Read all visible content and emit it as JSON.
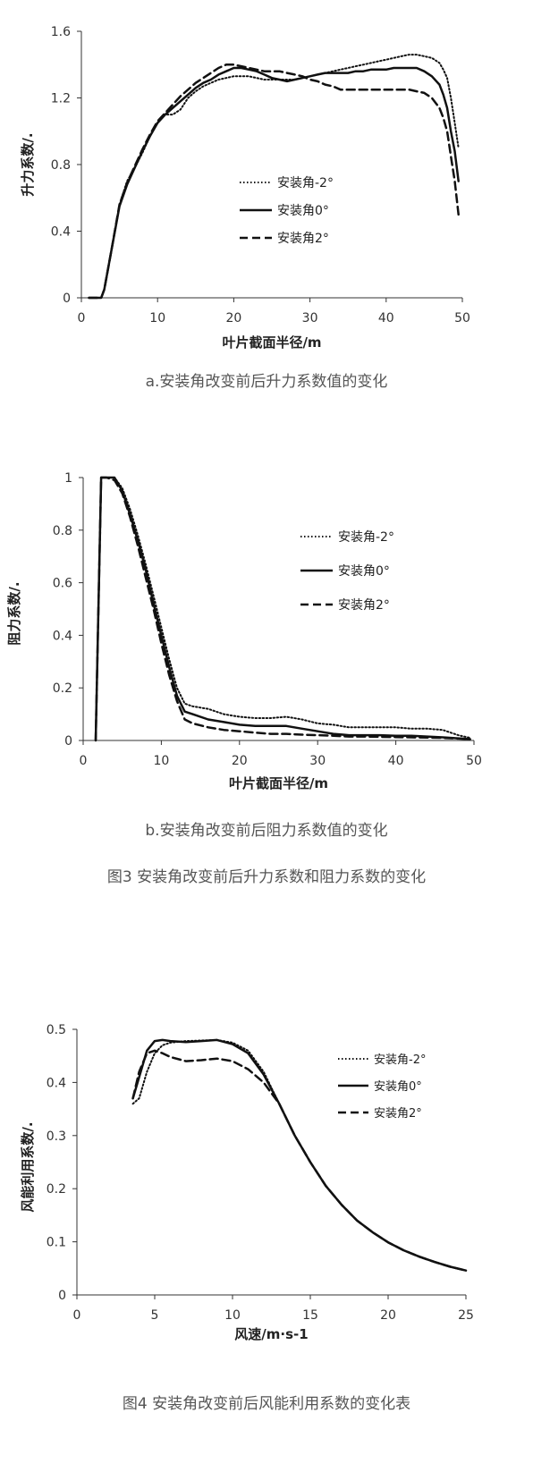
{
  "chart_data": [
    {
      "type": "line",
      "caption": "a.安装角改变前后升力系数值的变化",
      "xlabel": "叶片截面半径/m",
      "ylabel": "升力系数/.",
      "xlim": [
        0,
        50
      ],
      "ylim": [
        0,
        1.6
      ],
      "xticks": [
        "0",
        "10",
        "20",
        "30",
        "40",
        "50"
      ],
      "yticks": [
        "0",
        "0.4",
        "0.8",
        "1.2",
        "1.6"
      ],
      "xtick_values": [
        0,
        10,
        20,
        30,
        40,
        50
      ],
      "ytick_values": [
        0,
        0.4,
        0.8,
        1.2,
        1.6
      ],
      "grid": false,
      "legend_position": "center",
      "series": [
        {
          "name": "安装角-2°",
          "style": "dotted",
          "x": [
            1,
            2.6,
            3,
            4,
            5,
            6,
            7,
            8,
            9,
            10,
            11,
            12,
            13,
            14,
            15,
            16,
            17,
            18,
            19,
            20,
            21,
            22,
            23,
            24,
            25,
            26,
            27,
            28,
            29,
            30,
            31,
            32,
            33,
            34,
            35,
            36,
            37,
            38,
            39,
            40,
            41,
            42,
            43,
            44,
            45,
            46,
            47,
            47.5,
            48,
            48.5,
            49,
            49.5
          ],
          "y": [
            0,
            0,
            0.05,
            0.3,
            0.56,
            0.7,
            0.78,
            0.87,
            0.97,
            1.05,
            1.1,
            1.1,
            1.13,
            1.2,
            1.24,
            1.27,
            1.29,
            1.31,
            1.32,
            1.33,
            1.33,
            1.33,
            1.32,
            1.31,
            1.31,
            1.31,
            1.31,
            1.31,
            1.32,
            1.33,
            1.34,
            1.35,
            1.36,
            1.37,
            1.38,
            1.39,
            1.4,
            1.41,
            1.42,
            1.43,
            1.44,
            1.45,
            1.46,
            1.46,
            1.45,
            1.44,
            1.41,
            1.37,
            1.32,
            1.2,
            1.05,
            0.9
          ]
        },
        {
          "name": "安装角0°",
          "style": "solid",
          "x": [
            1,
            2.6,
            3,
            4,
            5,
            6,
            7,
            8,
            9,
            10,
            11,
            12,
            13,
            14,
            15,
            16,
            17,
            18,
            19,
            20,
            21,
            22,
            23,
            24,
            25,
            26,
            27,
            28,
            29,
            30,
            31,
            32,
            33,
            34,
            35,
            36,
            37,
            38,
            39,
            40,
            41,
            42,
            43,
            44,
            45,
            46,
            47,
            47.5,
            48,
            48.5,
            49,
            49.5
          ],
          "y": [
            0,
            0,
            0.05,
            0.3,
            0.55,
            0.68,
            0.78,
            0.88,
            0.97,
            1.05,
            1.1,
            1.14,
            1.18,
            1.22,
            1.26,
            1.29,
            1.31,
            1.34,
            1.36,
            1.38,
            1.38,
            1.37,
            1.36,
            1.34,
            1.32,
            1.31,
            1.3,
            1.31,
            1.32,
            1.33,
            1.34,
            1.35,
            1.35,
            1.35,
            1.35,
            1.36,
            1.36,
            1.37,
            1.37,
            1.37,
            1.38,
            1.38,
            1.38,
            1.38,
            1.36,
            1.33,
            1.28,
            1.22,
            1.14,
            1.0,
            0.88,
            0.7
          ]
        },
        {
          "name": "安装角2°",
          "style": "dashed",
          "x": [
            1,
            2.6,
            3,
            4,
            5,
            6,
            7,
            8,
            9,
            10,
            11,
            12,
            13,
            14,
            15,
            16,
            17,
            18,
            19,
            20,
            21,
            22,
            23,
            24,
            25,
            26,
            27,
            28,
            29,
            30,
            31,
            32,
            33,
            34,
            35,
            36,
            37,
            38,
            39,
            40,
            41,
            42,
            43,
            44,
            45,
            46,
            47,
            47.5,
            48,
            48.5,
            49,
            49.5
          ],
          "y": [
            0,
            0,
            0.05,
            0.3,
            0.56,
            0.69,
            0.79,
            0.89,
            0.98,
            1.06,
            1.11,
            1.16,
            1.21,
            1.25,
            1.29,
            1.32,
            1.35,
            1.38,
            1.4,
            1.4,
            1.39,
            1.38,
            1.37,
            1.36,
            1.36,
            1.36,
            1.35,
            1.34,
            1.33,
            1.31,
            1.3,
            1.28,
            1.27,
            1.25,
            1.25,
            1.25,
            1.25,
            1.25,
            1.25,
            1.25,
            1.25,
            1.25,
            1.25,
            1.24,
            1.23,
            1.2,
            1.14,
            1.08,
            1.0,
            0.85,
            0.7,
            0.5
          ]
        }
      ]
    },
    {
      "type": "line",
      "caption": "b.安装角改变前后阻力系数值的变化",
      "xlabel": "叶片截面半径/m",
      "ylabel": "阻力系数/.",
      "xlim": [
        0,
        50
      ],
      "ylim": [
        0,
        1
      ],
      "xticks": [
        "0",
        "10",
        "20",
        "30",
        "40",
        "50"
      ],
      "yticks": [
        "0",
        "0.2",
        "0.4",
        "0.6",
        "0.8",
        "1"
      ],
      "xtick_values": [
        0,
        10,
        20,
        30,
        40,
        50
      ],
      "ytick_values": [
        0,
        0.2,
        0.4,
        0.6,
        0.8,
        1
      ],
      "grid": false,
      "legend_position": "top-right",
      "series": [
        {
          "name": "安装角-2°",
          "style": "dotted",
          "x": [
            1.6,
            2.3,
            3,
            4,
            5,
            6,
            7,
            8,
            9,
            10,
            11,
            12,
            13,
            14,
            16,
            18,
            20,
            22,
            24,
            26,
            28,
            30,
            32,
            34,
            36,
            38,
            40,
            42,
            44,
            46,
            48,
            49.5
          ],
          "y": [
            0,
            1,
            1,
            1,
            0.96,
            0.88,
            0.78,
            0.67,
            0.55,
            0.43,
            0.31,
            0.2,
            0.14,
            0.13,
            0.12,
            0.1,
            0.09,
            0.085,
            0.085,
            0.09,
            0.08,
            0.065,
            0.06,
            0.05,
            0.05,
            0.05,
            0.05,
            0.045,
            0.045,
            0.04,
            0.02,
            0.01
          ]
        },
        {
          "name": "安装角0°",
          "style": "solid",
          "x": [
            1.6,
            2.3,
            3,
            4,
            5,
            6,
            7,
            8,
            9,
            10,
            11,
            12,
            13,
            14,
            16,
            18,
            20,
            22,
            24,
            26,
            28,
            30,
            32,
            34,
            36,
            38,
            40,
            42,
            44,
            46,
            48,
            49.5
          ],
          "y": [
            0,
            1,
            1,
            1,
            0.95,
            0.86,
            0.76,
            0.65,
            0.52,
            0.4,
            0.28,
            0.17,
            0.11,
            0.1,
            0.08,
            0.07,
            0.06,
            0.055,
            0.055,
            0.055,
            0.045,
            0.035,
            0.025,
            0.02,
            0.02,
            0.02,
            0.018,
            0.018,
            0.015,
            0.012,
            0.008,
            0.005
          ]
        },
        {
          "name": "安装角2°",
          "style": "dashed",
          "x": [
            1.6,
            2.3,
            3,
            4,
            5,
            6,
            7,
            8,
            9,
            10,
            11,
            12,
            13,
            14,
            16,
            18,
            20,
            22,
            24,
            26,
            28,
            30,
            32,
            34,
            36,
            38,
            40,
            42,
            44,
            46,
            48,
            49.5
          ],
          "y": [
            0,
            1,
            1,
            0.99,
            0.94,
            0.85,
            0.74,
            0.62,
            0.5,
            0.37,
            0.25,
            0.15,
            0.08,
            0.065,
            0.05,
            0.04,
            0.035,
            0.03,
            0.025,
            0.025,
            0.022,
            0.02,
            0.018,
            0.015,
            0.015,
            0.014,
            0.013,
            0.012,
            0.011,
            0.01,
            0.007,
            0.005
          ]
        }
      ]
    },
    {
      "type": "line",
      "caption": "图4 安装角改变前后风能利用系数的变化表",
      "xlabel": "风速/m·s-1",
      "ylabel": "风能利用系数/.",
      "xlim": [
        0,
        25
      ],
      "ylim": [
        0,
        0.5
      ],
      "xticks": [
        "0",
        "5",
        "10",
        "15",
        "20",
        "25"
      ],
      "yticks": [
        "0",
        "0.1",
        "0.2",
        "0.3",
        "0.4",
        "0.5"
      ],
      "xtick_values": [
        0,
        5,
        10,
        15,
        20,
        25
      ],
      "ytick_values": [
        0,
        0.1,
        0.2,
        0.3,
        0.4,
        0.5
      ],
      "grid": false,
      "legend_position": "top-right",
      "series": [
        {
          "name": "安装角-2°",
          "style": "dotted",
          "x": [
            3.6,
            4,
            4.5,
            5,
            5.5,
            6,
            7,
            8,
            9,
            10,
            11,
            12,
            13,
            14,
            15,
            16,
            17,
            18,
            19,
            20,
            21,
            22,
            23,
            24,
            25
          ],
          "y": [
            0.36,
            0.37,
            0.42,
            0.455,
            0.47,
            0.475,
            0.478,
            0.479,
            0.48,
            0.475,
            0.46,
            0.42,
            0.36,
            0.3,
            0.25,
            0.205,
            0.17,
            0.14,
            0.118,
            0.099,
            0.084,
            0.072,
            0.062,
            0.053,
            0.046
          ]
        },
        {
          "name": "安装角0°",
          "style": "solid",
          "x": [
            3.6,
            4,
            4.5,
            5,
            5.5,
            6,
            7,
            8,
            9,
            10,
            11,
            12,
            13,
            14,
            15,
            16,
            17,
            18,
            19,
            20,
            21,
            22,
            23,
            24,
            25
          ],
          "y": [
            0.37,
            0.41,
            0.46,
            0.478,
            0.48,
            0.478,
            0.476,
            0.478,
            0.48,
            0.472,
            0.455,
            0.415,
            0.36,
            0.3,
            0.25,
            0.205,
            0.17,
            0.14,
            0.118,
            0.099,
            0.084,
            0.072,
            0.062,
            0.053,
            0.046
          ]
        },
        {
          "name": "安装角2°",
          "style": "dashed",
          "x": [
            3.6,
            4,
            4.5,
            5,
            5.5,
            6,
            7,
            8,
            9,
            10,
            11,
            12,
            13,
            14,
            15,
            16,
            17,
            18,
            19,
            20,
            21,
            22,
            23,
            24,
            25
          ],
          "y": [
            0.37,
            0.42,
            0.455,
            0.46,
            0.455,
            0.448,
            0.44,
            0.442,
            0.445,
            0.44,
            0.425,
            0.4,
            0.36,
            0.3,
            0.25,
            0.205,
            0.17,
            0.14,
            0.118,
            0.099,
            0.084,
            0.072,
            0.062,
            0.053,
            0.046
          ]
        }
      ]
    }
  ],
  "figure3_caption": "图3 安装角改变前后升力系数和阻力系数的变化"
}
